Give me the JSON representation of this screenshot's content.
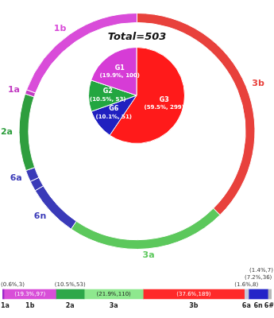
{
  "chart_data": [
    {
      "type": "doughnut",
      "categories": [
        "3b",
        "3a",
        "6n",
        null,
        "6a",
        "2a",
        "1a",
        "1b"
      ],
      "values": [
        189,
        110,
        36,
        7,
        8,
        53,
        3,
        97
      ],
      "colors": [
        "#e8413c",
        "#5cc85c",
        "#3a3ab8",
        "#3a3ab8",
        "#3a3ab8",
        "#2e9e3e",
        "#c23cc2",
        "#d94cd9"
      ]
    },
    {
      "type": "pie",
      "title": "Total=503",
      "categories": [
        "G3",
        "G6",
        "G2",
        "G1"
      ],
      "values": [
        299,
        51,
        53,
        100
      ],
      "value_labels": [
        "(59.5%, 299)",
        "(10.1%, 51)",
        "(10.5%, 53)",
        "(19.9%, 100)"
      ],
      "colors": [
        "#ff1a1a",
        "#2020c0",
        "#22a640",
        "#d63cd6"
      ],
      "data_labels": true
    },
    {
      "type": "bar",
      "orientation": "horizontal",
      "stacked": true,
      "data_labels": true,
      "tick_labels": false,
      "categories": [
        null
      ],
      "xlim": [
        0,
        503
      ],
      "series": [
        {
          "name": "1a",
          "color": "#9b27c9",
          "values": [
            3
          ],
          "value_labels": [
            "(0.6%,3)"
          ]
        },
        {
          "name": "1b",
          "color": "#d84ed8",
          "values": [
            97
          ],
          "value_labels": [
            "(19.3%,97)"
          ]
        },
        {
          "name": "2a",
          "color": "#2ea84a",
          "values": [
            53
          ],
          "value_labels": [
            "(10.5%,53)"
          ]
        },
        {
          "name": "3a",
          "color": "#8ee88e",
          "values": [
            110
          ],
          "value_labels": [
            "(21.9%,110)"
          ]
        },
        {
          "name": "3b",
          "color": "#ff2a2a",
          "values": [
            189
          ],
          "value_labels": [
            "(37.6%,189)"
          ]
        },
        {
          "name": "6a",
          "color": "#c8c8d8",
          "values": [
            8
          ],
          "value_labels": [
            "(1.6%,8)"
          ]
        },
        {
          "name": "6n",
          "color": "#2424c8",
          "values": [
            36
          ],
          "value_labels": [
            "(7.2%,36)"
          ]
        },
        {
          "name": "6#",
          "color": "#b8b8b8",
          "values": [
            7
          ],
          "value_labels": [
            "(1.4%,7)"
          ]
        }
      ]
    }
  ]
}
